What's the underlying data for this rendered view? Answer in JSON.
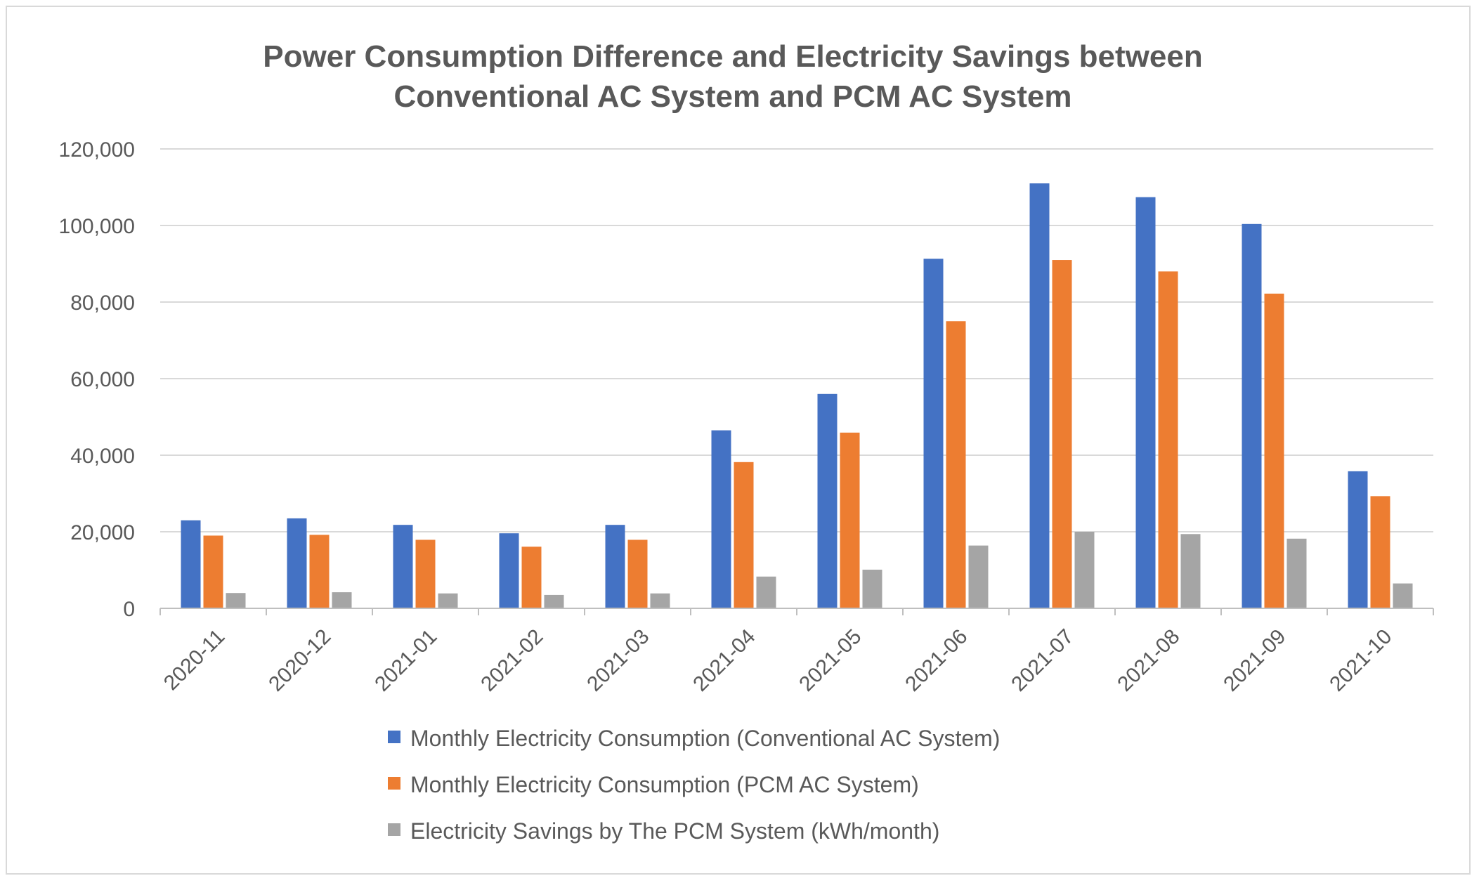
{
  "chart_data": {
    "type": "bar",
    "title_lines": [
      "Power Consumption  Difference and Electricity Savings between",
      "Conventional AC System and PCM AC System"
    ],
    "xlabel": "",
    "ylabel": "",
    "ylim": [
      0,
      120000
    ],
    "yticks": [
      0,
      20000,
      40000,
      60000,
      80000,
      100000,
      120000
    ],
    "ytick_labels": [
      "0",
      "20,000",
      "40,000",
      "60,000",
      "80,000",
      "100,000",
      "120,000"
    ],
    "grid": true,
    "legend_position": "bottom",
    "categories": [
      "2020-11",
      "2020-12",
      "2021-01",
      "2021-02",
      "2021-03",
      "2021-04",
      "2021-05",
      "2021-06",
      "2021-07",
      "2021-08",
      "2021-09",
      "2021-10"
    ],
    "series": [
      {
        "name": "Monthly Electricity Consumption (Conventional AC System)",
        "color": "#4472c4",
        "values": [
          23000,
          23500,
          21800,
          19600,
          21800,
          46500,
          56000,
          91300,
          111000,
          107400,
          100400,
          35800
        ]
      },
      {
        "name": "Monthly Electricity Consumption (PCM AC System)",
        "color": "#ed7d31",
        "values": [
          19000,
          19200,
          17900,
          16100,
          17900,
          38200,
          45900,
          75000,
          91000,
          88000,
          82200,
          29300
        ]
      },
      {
        "name": "Electricity Savings by The PCM System (kWh/month)",
        "color": "#a5a5a5",
        "values": [
          4000,
          4200,
          3900,
          3500,
          3900,
          8300,
          10100,
          16400,
          20000,
          19400,
          18200,
          6500
        ]
      }
    ]
  }
}
